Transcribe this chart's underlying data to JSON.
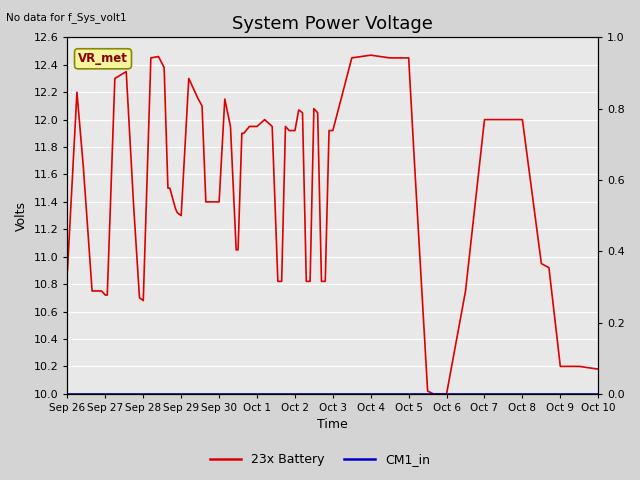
{
  "title": "System Power Voltage",
  "xlabel": "Time",
  "ylabel": "Volts",
  "no_data_label": "No data for f_Sys_volt1",
  "vr_met_label": "VR_met",
  "legend_entries": [
    "23x Battery",
    "CM1_in"
  ],
  "legend_colors": [
    "#dd0000",
    "#0000cc"
  ],
  "ylim_left": [
    10.0,
    12.6
  ],
  "ylim_right": [
    0.0,
    1.0
  ],
  "yticks_left": [
    10.0,
    10.2,
    10.4,
    10.6,
    10.8,
    11.0,
    11.2,
    11.4,
    11.6,
    11.8,
    12.0,
    12.2,
    12.4,
    12.6
  ],
  "yticks_right": [
    0.0,
    0.2,
    0.4,
    0.6,
    0.8,
    1.0
  ],
  "xtick_labels": [
    "Sep 26",
    "Sep 27",
    "Sep 28",
    "Sep 29",
    "Sep 30",
    "Oct 1",
    "Oct 2",
    "Oct 3",
    "Oct 4",
    "Oct 5",
    "Oct 6",
    "Oct 7",
    "Oct 8",
    "Oct 9",
    "Oct 10"
  ],
  "background_color": "#d4d4d4",
  "plot_bg_color": "#e8e8e8",
  "line_color_battery": "#dd0000",
  "line_color_cm1": "#0000bb",
  "title_fontsize": 13,
  "label_fontsize": 9,
  "tick_fontsize": 8,
  "battery_x": [
    0.0,
    0.25,
    0.42,
    0.65,
    0.9,
    1.0,
    1.05,
    1.25,
    1.55,
    1.75,
    1.9,
    2.0,
    2.0,
    2.2,
    2.4,
    2.55,
    2.65,
    2.7,
    2.85,
    2.9,
    3.0,
    3.0,
    3.2,
    3.45,
    3.55,
    3.65,
    3.75,
    3.9,
    4.0,
    4.0,
    4.15,
    4.3,
    4.45,
    4.5,
    4.6,
    4.65,
    4.8,
    5.0,
    5.0,
    5.2,
    5.4,
    5.55,
    5.65,
    5.75,
    5.85,
    6.0,
    6.0,
    6.1,
    6.2,
    6.3,
    6.4,
    6.5,
    6.6,
    6.7,
    6.8,
    6.9,
    7.0,
    7.0,
    7.5,
    8.0,
    8.5,
    9.0,
    9.0,
    9.15,
    9.5,
    9.65,
    10.0,
    10.0,
    10.5,
    11.0,
    11.5,
    12.0,
    12.5,
    12.7,
    13.0,
    13.5,
    14.0
  ],
  "battery_y": [
    10.9,
    12.2,
    11.65,
    10.75,
    10.75,
    10.72,
    10.72,
    12.3,
    12.35,
    11.35,
    10.7,
    10.68,
    10.68,
    12.45,
    12.46,
    12.38,
    11.5,
    11.5,
    11.35,
    11.32,
    11.3,
    11.3,
    12.3,
    12.15,
    12.1,
    11.4,
    11.4,
    11.4,
    11.4,
    11.4,
    12.15,
    11.95,
    11.05,
    11.05,
    11.9,
    11.9,
    11.95,
    11.95,
    11.95,
    12.0,
    11.95,
    10.82,
    10.82,
    11.95,
    11.92,
    11.92,
    11.92,
    12.07,
    12.05,
    10.82,
    10.82,
    12.08,
    12.05,
    10.82,
    10.82,
    11.92,
    11.92,
    11.92,
    12.45,
    12.47,
    12.45,
    12.45,
    12.45,
    11.7,
    10.02,
    10.0,
    10.0,
    10.0,
    10.75,
    12.0,
    12.0,
    12.0,
    10.95,
    10.92,
    10.2,
    10.2,
    10.18
  ]
}
